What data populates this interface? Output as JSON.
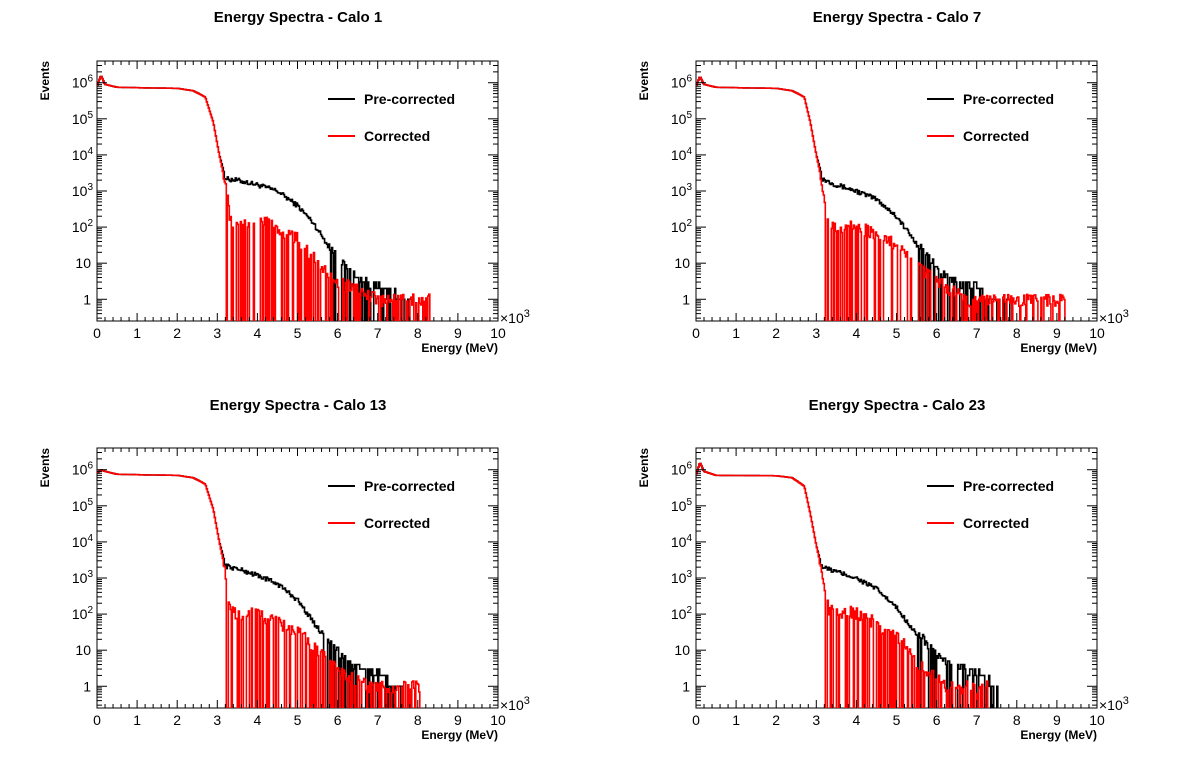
{
  "chart_data": [
    {
      "type": "line",
      "title": "Energy Spectra - Calo 1",
      "xlabel": "Energy (MeV)",
      "ylabel": "Events",
      "x_multiplier_label": "×10",
      "x_multiplier_exp": "3",
      "xlim": [
        0,
        10
      ],
      "ylim": [
        0.25,
        4000000
      ],
      "yscale": "log",
      "x_ticks": [
        "0",
        "1",
        "2",
        "3",
        "4",
        "5",
        "6",
        "7",
        "8",
        "9",
        "10"
      ],
      "y_ticks": [
        {
          "v": 1,
          "b": "1",
          "e": ""
        },
        {
          "v": 10,
          "b": "10",
          "e": ""
        },
        {
          "v": 100,
          "b": "10",
          "e": "2"
        },
        {
          "v": 1000,
          "b": "10",
          "e": "3"
        },
        {
          "v": 10000,
          "b": "10",
          "e": "4"
        },
        {
          "v": 100000,
          "b": "10",
          "e": "5"
        },
        {
          "v": 1000000,
          "b": "10",
          "e": "6"
        }
      ],
      "legend_position": "top-right",
      "series": [
        {
          "name": "Pre-corrected",
          "color": "#000000",
          "points": [
            [
              0,
              800000
            ],
            [
              0.1,
              1600000
            ],
            [
              0.2,
              900000
            ],
            [
              0.5,
              750000
            ],
            [
              1.2,
              720000
            ],
            [
              2.0,
              700000
            ],
            [
              2.4,
              600000
            ],
            [
              2.7,
              400000
            ],
            [
              2.9,
              80000
            ],
            [
              3.05,
              10000
            ],
            [
              3.15,
              4000
            ],
            [
              3.2,
              2200
            ],
            [
              3.5,
              2000
            ],
            [
              4.0,
              1500
            ],
            [
              4.5,
              1000
            ],
            [
              5.0,
              400
            ],
            [
              5.4,
              130
            ],
            [
              5.7,
              40
            ],
            [
              6.0,
              12
            ],
            [
              6.3,
              5
            ],
            [
              6.6,
              3
            ],
            [
              7.0,
              2
            ],
            [
              7.5,
              1
            ],
            [
              7.9,
              1
            ]
          ]
        },
        {
          "name": "Corrected",
          "color": "#ff0000",
          "points": [
            [
              0,
              800000
            ],
            [
              0.1,
              1600000
            ],
            [
              0.2,
              900000
            ],
            [
              0.5,
              750000
            ],
            [
              1.2,
              720000
            ],
            [
              2.0,
              700000
            ],
            [
              2.4,
              600000
            ],
            [
              2.7,
              400000
            ],
            [
              2.9,
              80000
            ],
            [
              3.05,
              10000
            ],
            [
              3.15,
              3000
            ],
            [
              3.25,
              800
            ],
            [
              3.3,
              200
            ],
            [
              3.45,
              120
            ],
            [
              3.8,
              150
            ],
            [
              4.2,
              140
            ],
            [
              4.6,
              80
            ],
            [
              5.0,
              50
            ],
            [
              5.3,
              20
            ],
            [
              5.6,
              8
            ],
            [
              6.0,
              3
            ],
            [
              6.5,
              2
            ],
            [
              7.0,
              1
            ],
            [
              7.6,
              1
            ],
            [
              8.3,
              1
            ]
          ]
        }
      ]
    },
    {
      "type": "line",
      "title": "Energy Spectra - Calo 7",
      "xlabel": "Energy (MeV)",
      "ylabel": "Events",
      "x_multiplier_label": "×10",
      "x_multiplier_exp": "3",
      "xlim": [
        0,
        10
      ],
      "ylim": [
        0.25,
        4000000
      ],
      "yscale": "log",
      "x_ticks": [
        "0",
        "1",
        "2",
        "3",
        "4",
        "5",
        "6",
        "7",
        "8",
        "9",
        "10"
      ],
      "y_ticks": [
        {
          "v": 1,
          "b": "1",
          "e": ""
        },
        {
          "v": 10,
          "b": "10",
          "e": ""
        },
        {
          "v": 100,
          "b": "10",
          "e": "2"
        },
        {
          "v": 1000,
          "b": "10",
          "e": "3"
        },
        {
          "v": 10000,
          "b": "10",
          "e": "4"
        },
        {
          "v": 100000,
          "b": "10",
          "e": "5"
        },
        {
          "v": 1000000,
          "b": "10",
          "e": "6"
        }
      ],
      "legend_position": "top-right",
      "series": [
        {
          "name": "Pre-corrected",
          "color": "#000000",
          "points": [
            [
              0,
              800000
            ],
            [
              0.1,
              1500000
            ],
            [
              0.2,
              900000
            ],
            [
              0.5,
              750000
            ],
            [
              1.2,
              720000
            ],
            [
              2.0,
              700000
            ],
            [
              2.4,
              600000
            ],
            [
              2.7,
              400000
            ],
            [
              2.85,
              80000
            ],
            [
              3.0,
              10000
            ],
            [
              3.1,
              4000
            ],
            [
              3.15,
              2200
            ],
            [
              3.5,
              1500
            ],
            [
              4.0,
              1000
            ],
            [
              4.5,
              600
            ],
            [
              5.0,
              200
            ],
            [
              5.4,
              50
            ],
            [
              5.8,
              12
            ],
            [
              6.1,
              5
            ],
            [
              6.4,
              3
            ],
            [
              7.0,
              2
            ],
            [
              7.3,
              1
            ],
            [
              7.8,
              1
            ]
          ]
        },
        {
          "name": "Corrected",
          "color": "#ff0000",
          "points": [
            [
              0,
              800000
            ],
            [
              0.1,
              1500000
            ],
            [
              0.2,
              900000
            ],
            [
              0.5,
              750000
            ],
            [
              1.2,
              720000
            ],
            [
              2.0,
              700000
            ],
            [
              2.4,
              600000
            ],
            [
              2.7,
              400000
            ],
            [
              2.85,
              80000
            ],
            [
              3.0,
              10000
            ],
            [
              3.1,
              3000
            ],
            [
              3.2,
              600
            ],
            [
              3.3,
              150
            ],
            [
              3.5,
              100
            ],
            [
              3.9,
              120
            ],
            [
              4.3,
              80
            ],
            [
              4.7,
              50
            ],
            [
              5.1,
              30
            ],
            [
              5.5,
              10
            ],
            [
              5.9,
              4
            ],
            [
              6.3,
              2
            ],
            [
              6.8,
              1
            ],
            [
              7.4,
              1
            ],
            [
              8.5,
              1
            ],
            [
              9.2,
              1
            ]
          ]
        }
      ]
    },
    {
      "type": "line",
      "title": "Energy Spectra - Calo 13",
      "xlabel": "Energy (MeV)",
      "ylabel": "Events",
      "x_multiplier_label": "×10",
      "x_multiplier_exp": "3",
      "xlim": [
        0,
        10
      ],
      "ylim": [
        0.25,
        4000000
      ],
      "yscale": "log",
      "x_ticks": [
        "0",
        "1",
        "2",
        "3",
        "4",
        "5",
        "6",
        "7",
        "8",
        "9",
        "10"
      ],
      "y_ticks": [
        {
          "v": 1,
          "b": "1",
          "e": ""
        },
        {
          "v": 10,
          "b": "10",
          "e": ""
        },
        {
          "v": 100,
          "b": "10",
          "e": "2"
        },
        {
          "v": 1000,
          "b": "10",
          "e": "3"
        },
        {
          "v": 10000,
          "b": "10",
          "e": "4"
        },
        {
          "v": 100000,
          "b": "10",
          "e": "5"
        },
        {
          "v": 1000000,
          "b": "10",
          "e": "6"
        }
      ],
      "legend_position": "top-right",
      "series": [
        {
          "name": "Pre-corrected",
          "color": "#000000",
          "points": [
            [
              0,
              800000
            ],
            [
              0.1,
              1000000
            ],
            [
              0.2,
              900000
            ],
            [
              0.5,
              750000
            ],
            [
              1.2,
              720000
            ],
            [
              2.0,
              700000
            ],
            [
              2.4,
              600000
            ],
            [
              2.7,
              400000
            ],
            [
              2.9,
              80000
            ],
            [
              3.05,
              10000
            ],
            [
              3.15,
              4000
            ],
            [
              3.2,
              2200
            ],
            [
              3.5,
              1800
            ],
            [
              4.0,
              1200
            ],
            [
              4.5,
              700
            ],
            [
              5.0,
              250
            ],
            [
              5.4,
              60
            ],
            [
              5.8,
              15
            ],
            [
              6.1,
              6
            ],
            [
              6.5,
              3
            ],
            [
              7.0,
              2
            ],
            [
              7.3,
              1
            ],
            [
              7.6,
              1
            ]
          ]
        },
        {
          "name": "Corrected",
          "color": "#ff0000",
          "points": [
            [
              0,
              800000
            ],
            [
              0.1,
              1000000
            ],
            [
              0.2,
              900000
            ],
            [
              0.5,
              750000
            ],
            [
              1.2,
              720000
            ],
            [
              2.0,
              700000
            ],
            [
              2.4,
              600000
            ],
            [
              2.7,
              400000
            ],
            [
              2.9,
              80000
            ],
            [
              3.05,
              10000
            ],
            [
              3.15,
              3000
            ],
            [
              3.25,
              800
            ],
            [
              3.3,
              200
            ],
            [
              3.5,
              100
            ],
            [
              3.9,
              110
            ],
            [
              4.3,
              80
            ],
            [
              4.7,
              50
            ],
            [
              5.1,
              30
            ],
            [
              5.5,
              10
            ],
            [
              5.9,
              4
            ],
            [
              6.3,
              2
            ],
            [
              6.8,
              1
            ],
            [
              7.5,
              1
            ],
            [
              8.1,
              1
            ]
          ]
        }
      ]
    },
    {
      "type": "line",
      "title": "Energy Spectra - Calo 23",
      "xlabel": "Energy (MeV)",
      "ylabel": "Events",
      "x_multiplier_label": "×10",
      "x_multiplier_exp": "3",
      "xlim": [
        0,
        10
      ],
      "ylim": [
        0.25,
        4000000
      ],
      "yscale": "log",
      "x_ticks": [
        "0",
        "1",
        "2",
        "3",
        "4",
        "5",
        "6",
        "7",
        "8",
        "9",
        "10"
      ],
      "y_ticks": [
        {
          "v": 1,
          "b": "1",
          "e": ""
        },
        {
          "v": 10,
          "b": "10",
          "e": ""
        },
        {
          "v": 100,
          "b": "10",
          "e": "2"
        },
        {
          "v": 1000,
          "b": "10",
          "e": "3"
        },
        {
          "v": 10000,
          "b": "10",
          "e": "4"
        },
        {
          "v": 100000,
          "b": "10",
          "e": "5"
        },
        {
          "v": 1000000,
          "b": "10",
          "e": "6"
        }
      ],
      "legend_position": "top-right",
      "series": [
        {
          "name": "Pre-corrected",
          "color": "#000000",
          "points": [
            [
              0,
              700000
            ],
            [
              0.1,
              1600000
            ],
            [
              0.2,
              900000
            ],
            [
              0.5,
              700000
            ],
            [
              1.2,
              690000
            ],
            [
              2.0,
              680000
            ],
            [
              2.4,
              600000
            ],
            [
              2.7,
              350000
            ],
            [
              2.85,
              60000
            ],
            [
              3.0,
              8000
            ],
            [
              3.1,
              3000
            ],
            [
              3.15,
              2000
            ],
            [
              3.5,
              1500
            ],
            [
              4.0,
              1000
            ],
            [
              4.5,
              500
            ],
            [
              5.0,
              150
            ],
            [
              5.4,
              40
            ],
            [
              5.8,
              12
            ],
            [
              6.1,
              5
            ],
            [
              6.5,
              3
            ],
            [
              7.0,
              2
            ],
            [
              7.4,
              1
            ],
            [
              7.6,
              1
            ]
          ]
        },
        {
          "name": "Corrected",
          "color": "#ff0000",
          "points": [
            [
              0,
              700000
            ],
            [
              0.1,
              1600000
            ],
            [
              0.2,
              900000
            ],
            [
              0.5,
              700000
            ],
            [
              1.2,
              690000
            ],
            [
              2.0,
              680000
            ],
            [
              2.4,
              600000
            ],
            [
              2.7,
              350000
            ],
            [
              2.85,
              60000
            ],
            [
              3.0,
              8000
            ],
            [
              3.1,
              2500
            ],
            [
              3.2,
              500
            ],
            [
              3.3,
              150
            ],
            [
              3.5,
              100
            ],
            [
              3.9,
              120
            ],
            [
              4.3,
              80
            ],
            [
              4.7,
              40
            ],
            [
              5.1,
              20
            ],
            [
              5.5,
              5
            ],
            [
              5.9,
              2
            ],
            [
              6.3,
              1
            ],
            [
              6.8,
              1
            ],
            [
              7.3,
              1
            ]
          ]
        }
      ]
    }
  ]
}
